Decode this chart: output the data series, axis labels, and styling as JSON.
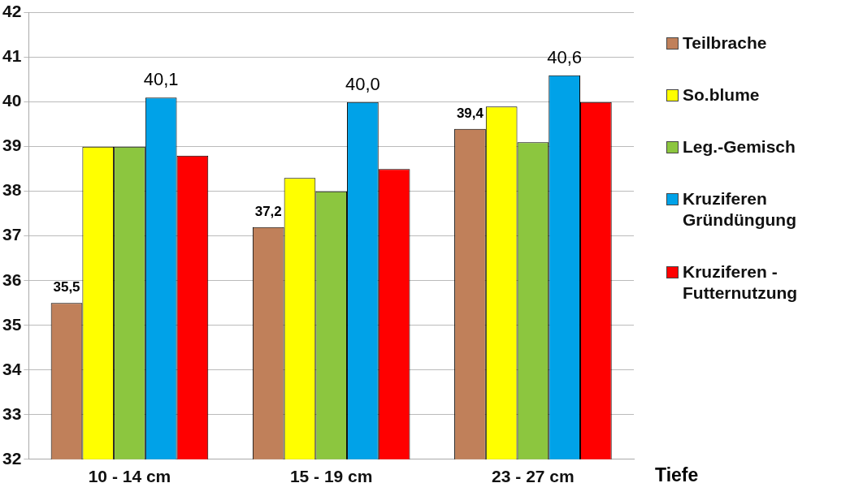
{
  "chart_data": {
    "type": "bar",
    "xlabel": "Tiefe",
    "categories": [
      "10 - 14 cm",
      "15 - 19 cm",
      "23 - 27 cm"
    ],
    "series": [
      {
        "name": "Teilbrache",
        "color": "#c0805a",
        "values": [
          35.5,
          37.2,
          39.4
        ],
        "value_labels": [
          "35,5",
          "37,2",
          "39,4"
        ]
      },
      {
        "name": "So.blume",
        "color": "#ffff00",
        "values": [
          39.0,
          38.3,
          39.9
        ]
      },
      {
        "name": "Leg.-Gemisch",
        "color": "#8cc63f",
        "values": [
          39.0,
          38.0,
          39.1
        ]
      },
      {
        "name": "Kruziferen Gründüngung",
        "color": "#00a2e8",
        "values": [
          40.1,
          40.0,
          40.6
        ],
        "value_labels": [
          "40,1",
          "40,0",
          "40,6"
        ]
      },
      {
        "name": "Kruziferen - Futternutzung",
        "color": "#ff0000",
        "values": [
          38.8,
          38.5,
          40.0
        ]
      }
    ],
    "ylim": [
      32,
      42
    ],
    "yticks": [
      32,
      33,
      34,
      35,
      36,
      37,
      38,
      39,
      40,
      41,
      42
    ],
    "grid": "y",
    "legend": "right"
  }
}
